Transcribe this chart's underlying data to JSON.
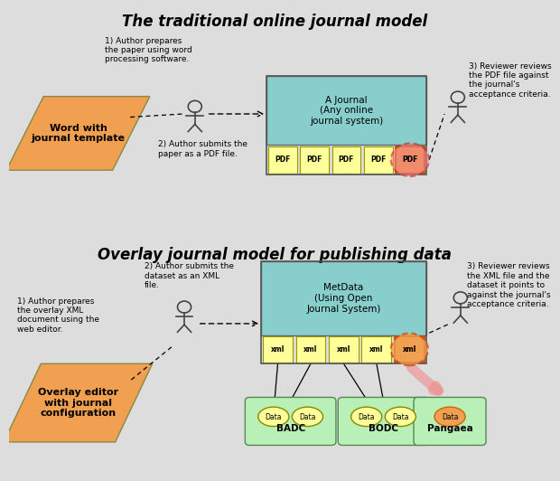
{
  "title1": "The traditional online journal model",
  "title2": "Overlay journal model for publishing data",
  "bg_color": "#e8e8e8",
  "panel_bg": "#f0f0f0",
  "teal_color": "#87cecc",
  "yellow_color": "#ffff99",
  "orange_shape": "#f0a050",
  "green_repo": "#b8f0b8",
  "pink_highlight": "#f08080",
  "salmon_arrow": "#f09090",
  "word_label": "Word with\njournal template",
  "text1_1": "1) Author prepares\nthe paper using word\nprocessing software.",
  "text1_2": "2) Author submits the\npaper as a PDF file.",
  "text1_3": "3) Reviewer reviews\nthe PDF file against\nthe journal's\nacceptance criteria.",
  "journal1_label": "A Journal\n(Any online\njournal system)",
  "text2_1": "1) Author prepares\nthe overlay XML\ndocument using the\nweb editor.",
  "text2_2": "2) Author submits the\ndataset as an XML\nfile.",
  "text2_3": "3) Reviewer reviews\nthe XML file and the\ndataset it points to\nagainst the journal's\nacceptance criteria.",
  "journal2_label": "MetData\n(Using Open\nJournal System)",
  "overlay_label": "Overlay editor\nwith journal\nconfiguration",
  "badc_label": "BADC",
  "bodc_label": "BODC",
  "pangaea_label": "Pangaea"
}
